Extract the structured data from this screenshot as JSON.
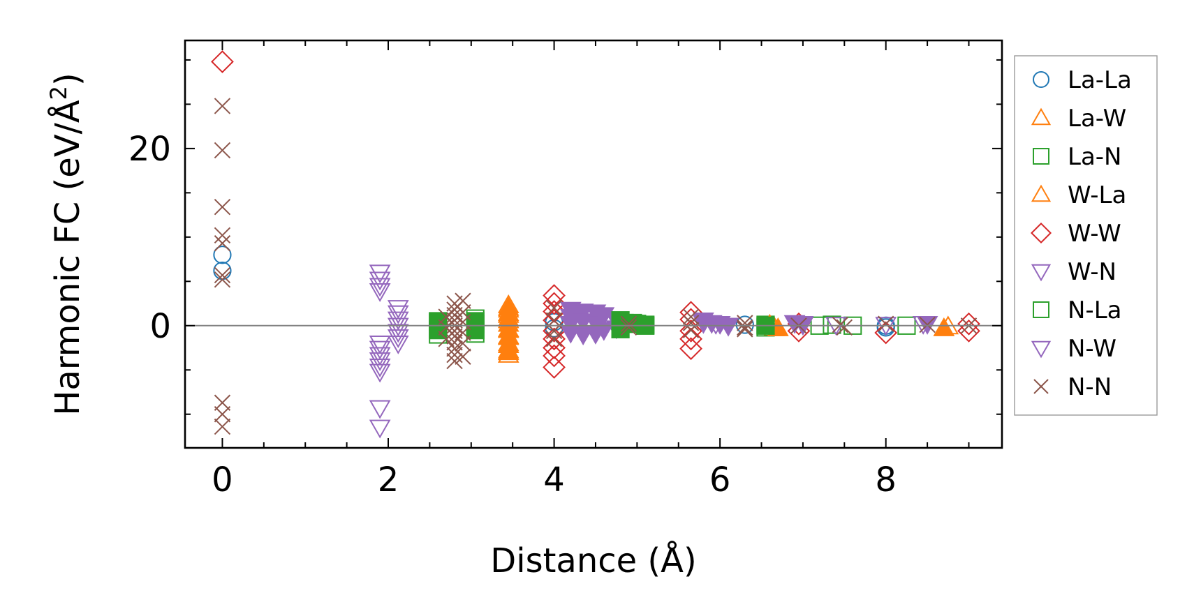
{
  "chart_data": {
    "type": "scatter",
    "xlabel": "Distance (Å)",
    "ylabel_main": "Harmonic FC (eV/Å",
    "ylabel_sup": "2",
    "ylabel_close": ")",
    "xlim": [
      -0.45,
      9.4
    ],
    "ylim": [
      -13.8,
      32.2
    ],
    "xticks": [
      0,
      2,
      4,
      6,
      8
    ],
    "xtick_labels": [
      "0",
      "2",
      "4",
      "6",
      "8"
    ],
    "xminor_step": 0.5,
    "yticks": [
      0,
      20
    ],
    "ytick_labels": [
      "0",
      "20"
    ],
    "yminor_step": 5,
    "zero_line": 0,
    "grid": false,
    "legend_position": "outside-right",
    "series": [
      {
        "name": "La-La",
        "marker": "circle",
        "filled": false,
        "color": "#1f77b4",
        "points": [
          [
            0,
            8.0
          ],
          [
            0,
            6.2
          ],
          [
            4.0,
            0.4
          ],
          [
            4.0,
            -0.3
          ],
          [
            6.3,
            0.1
          ],
          [
            8.0,
            0.0
          ],
          [
            8.0,
            -0.2
          ]
        ]
      },
      {
        "name": "La-W",
        "marker": "triangle-up",
        "filled": false,
        "color": "#ff7f0e",
        "points": [
          [
            3.45,
            2.3
          ],
          [
            3.45,
            1.8
          ],
          [
            3.45,
            1.2
          ],
          [
            3.45,
            0.6
          ],
          [
            3.45,
            -0.5
          ],
          [
            3.45,
            -1.3
          ],
          [
            3.45,
            -2.0
          ],
          [
            3.45,
            -2.8
          ],
          [
            3.45,
            -3.3
          ],
          [
            6.65,
            -0.1
          ],
          [
            6.65,
            -0.3
          ],
          [
            8.75,
            -0.1
          ]
        ]
      },
      {
        "name": "La-N",
        "marker": "square",
        "filled": false,
        "color": "#2ca02c",
        "points": [
          [
            2.6,
            0.5
          ],
          [
            2.6,
            -0.5
          ],
          [
            2.6,
            -1.0
          ],
          [
            3.05,
            0.8
          ],
          [
            3.05,
            0.2
          ],
          [
            3.05,
            -0.9
          ],
          [
            4.85,
            0.3
          ],
          [
            5.0,
            0.2
          ],
          [
            5.1,
            0.0
          ],
          [
            6.55,
            0.1
          ],
          [
            6.55,
            -0.2
          ],
          [
            7.2,
            0.0
          ],
          [
            7.35,
            0.1
          ],
          [
            7.6,
            0.0
          ],
          [
            8.25,
            0.0
          ]
        ]
      },
      {
        "name": "W-La",
        "marker": "triangle-up",
        "filled": true,
        "color": "#ff7f0e",
        "points": [
          [
            3.45,
            2.0
          ],
          [
            3.45,
            1.4
          ],
          [
            3.45,
            0.8
          ],
          [
            3.45,
            0.2
          ],
          [
            3.45,
            -0.4
          ],
          [
            3.45,
            -1.2
          ],
          [
            3.45,
            -2.2
          ],
          [
            3.45,
            -3.0
          ],
          [
            6.6,
            0.1
          ],
          [
            6.7,
            -0.3
          ],
          [
            8.7,
            -0.3
          ]
        ]
      },
      {
        "name": "W-W",
        "marker": "diamond",
        "filled": false,
        "color": "#d62728",
        "points": [
          [
            0,
            29.8
          ],
          [
            4.0,
            3.4
          ],
          [
            4.0,
            2.5
          ],
          [
            4.0,
            1.6
          ],
          [
            4.0,
            0.6
          ],
          [
            4.0,
            -0.6
          ],
          [
            4.0,
            -1.5
          ],
          [
            4.0,
            -2.5
          ],
          [
            4.0,
            -3.4
          ],
          [
            4.0,
            -4.7
          ],
          [
            5.65,
            1.5
          ],
          [
            5.65,
            0.7
          ],
          [
            5.65,
            -0.6
          ],
          [
            5.65,
            -1.5
          ],
          [
            5.65,
            -2.6
          ],
          [
            6.95,
            0.2
          ],
          [
            6.95,
            -0.6
          ],
          [
            8.0,
            -0.8
          ],
          [
            9.0,
            0.2
          ],
          [
            9.0,
            -0.6
          ]
        ]
      },
      {
        "name": "W-N",
        "marker": "triangle-down",
        "filled": true,
        "color": "#9467bd",
        "points": [
          [
            4.2,
            1.8
          ],
          [
            4.2,
            1.0
          ],
          [
            4.2,
            0.2
          ],
          [
            4.2,
            -0.8
          ],
          [
            4.35,
            1.6
          ],
          [
            4.35,
            0.5
          ],
          [
            4.35,
            -1.0
          ],
          [
            4.5,
            1.5
          ],
          [
            4.5,
            0.3
          ],
          [
            4.5,
            -0.9
          ],
          [
            4.6,
            1.2
          ],
          [
            4.6,
            -0.5
          ],
          [
            4.75,
            0.6
          ],
          [
            4.75,
            -0.3
          ],
          [
            5.8,
            0.6
          ],
          [
            5.9,
            0.3
          ],
          [
            6.0,
            0.2
          ],
          [
            6.1,
            0.0
          ],
          [
            6.9,
            0.3
          ],
          [
            7.0,
            0.1
          ],
          [
            8.5,
            0.2
          ]
        ]
      },
      {
        "name": "N-La",
        "marker": "square",
        "filled": true,
        "color": "#2ca02c",
        "points": [
          [
            2.6,
            0.4
          ],
          [
            2.6,
            -0.4
          ],
          [
            3.05,
            0.5
          ],
          [
            3.05,
            -0.5
          ],
          [
            4.8,
            0.6
          ],
          [
            4.8,
            -0.4
          ],
          [
            4.95,
            0.3
          ],
          [
            5.1,
            0.1
          ],
          [
            6.55,
            0.0
          ]
        ]
      },
      {
        "name": "N-W",
        "marker": "triangle-down",
        "filled": false,
        "color": "#9467bd",
        "points": [
          [
            1.9,
            6.0
          ],
          [
            1.9,
            5.2
          ],
          [
            1.9,
            4.5
          ],
          [
            1.9,
            3.9
          ],
          [
            1.9,
            -2.0
          ],
          [
            1.9,
            -2.6
          ],
          [
            1.9,
            -3.3
          ],
          [
            1.9,
            -3.9
          ],
          [
            1.9,
            -4.6
          ],
          [
            1.9,
            -5.2
          ],
          [
            1.9,
            -9.3
          ],
          [
            1.9,
            -11.5
          ],
          [
            2.12,
            2.0
          ],
          [
            2.12,
            1.4
          ],
          [
            2.12,
            0.7
          ],
          [
            2.12,
            0.0
          ],
          [
            2.12,
            -0.7
          ],
          [
            2.12,
            -1.3
          ],
          [
            2.12,
            -2.0
          ],
          [
            5.8,
            0.3
          ],
          [
            5.95,
            0.2
          ],
          [
            6.1,
            0.0
          ],
          [
            7.0,
            0.2
          ],
          [
            7.4,
            0.1
          ],
          [
            8.0,
            0.1
          ],
          [
            8.45,
            0.2
          ]
        ]
      },
      {
        "name": "N-N",
        "marker": "x",
        "filled": false,
        "color": "#8c564b",
        "points": [
          [
            0,
            24.8
          ],
          [
            0,
            19.8
          ],
          [
            0,
            13.4
          ],
          [
            0,
            10.2
          ],
          [
            0,
            9.3
          ],
          [
            0,
            5.7
          ],
          [
            0,
            5.2
          ],
          [
            0,
            -8.7
          ],
          [
            0,
            -10.0
          ],
          [
            0,
            -11.4
          ],
          [
            2.8,
            2.5
          ],
          [
            2.8,
            1.8
          ],
          [
            2.8,
            1.2
          ],
          [
            2.8,
            0.6
          ],
          [
            2.8,
            0.0
          ],
          [
            2.8,
            -0.6
          ],
          [
            2.8,
            -1.2
          ],
          [
            2.8,
            -1.9
          ],
          [
            2.8,
            -2.6
          ],
          [
            2.8,
            -3.3
          ],
          [
            2.8,
            -4.0
          ],
          [
            2.9,
            2.8
          ],
          [
            2.9,
            1.5
          ],
          [
            2.9,
            0.4
          ],
          [
            2.9,
            -0.8
          ],
          [
            2.9,
            -2.0
          ],
          [
            2.9,
            -3.5
          ],
          [
            2.7,
            1.0
          ],
          [
            2.7,
            -0.2
          ],
          [
            2.7,
            -1.5
          ],
          [
            4.0,
            2.0
          ],
          [
            4.0,
            0.6
          ],
          [
            4.0,
            -0.6
          ],
          [
            4.0,
            -1.5
          ],
          [
            4.9,
            0.2
          ],
          [
            4.9,
            -0.2
          ],
          [
            5.65,
            1.0
          ],
          [
            5.65,
            0.3
          ],
          [
            5.65,
            -0.5
          ],
          [
            6.3,
            0.3
          ],
          [
            6.3,
            -0.2
          ],
          [
            6.3,
            -0.4
          ],
          [
            6.95,
            0.0
          ],
          [
            7.45,
            0.1
          ],
          [
            7.5,
            -0.2
          ],
          [
            8.0,
            0.2
          ],
          [
            8.5,
            0.1
          ],
          [
            9.0,
            0.0
          ]
        ]
      }
    ]
  }
}
